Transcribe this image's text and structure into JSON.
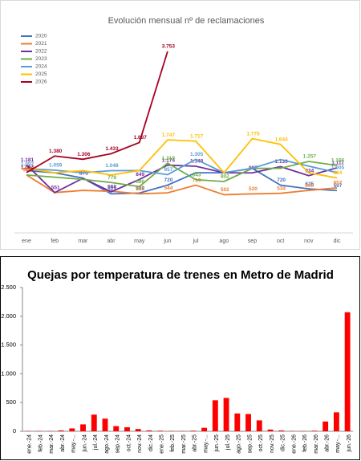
{
  "chart_data": [
    {
      "type": "line",
      "title": "Evolución mensual nº de reclamaciones",
      "categories": [
        "ene",
        "feb",
        "mar",
        "abr",
        "may",
        "jun",
        "jul",
        "ago",
        "sep",
        "oct",
        "nov",
        "dic"
      ],
      "series": [
        {
          "name": "2020",
          "color": "#4472c4",
          "values": [
            1050,
            1000,
            880,
            521,
            540,
            720,
            1000,
            1000,
            1100,
            720,
            635,
            597
          ],
          "value_labels": [
            null,
            null,
            null,
            "521",
            "540",
            "720",
            null,
            null,
            null,
            "720",
            "635",
            "597"
          ]
        },
        {
          "name": "2021",
          "color": "#ed7d31",
          "values": [
            949,
            550,
            600,
            580,
            523,
            544,
            719,
            502,
            520,
            534,
            600,
            657
          ],
          "value_labels": [
            "949",
            null,
            null,
            null,
            "523",
            "544",
            "719",
            "502",
            "520",
            "534",
            "600",
            "657"
          ]
        },
        {
          "name": "2022",
          "color": "#7030a0",
          "values": [
            1181,
            551,
            875,
            568,
            849,
            1174,
            1148,
            1000,
            997,
            1139,
            934,
            1111
          ],
          "value_labels": [
            "1.181",
            "551",
            "875",
            "568",
            "849",
            "1.174",
            "1.148",
            null,
            "997",
            "1.139",
            "934",
            "1.111"
          ]
        },
        {
          "name": "2023",
          "color": "#70ad47",
          "values": [
            950,
            900,
            850,
            779,
            686,
            1219,
            843,
            802,
            1100,
            1100,
            1257,
            1166
          ],
          "value_labels": [
            null,
            null,
            null,
            "779",
            "686",
            "1.219",
            "843",
            "802",
            null,
            null,
            "1.257",
            "1.166"
          ]
        },
        {
          "name": "2024",
          "color": "#5b9bd5",
          "values": [
            1092,
            1059,
            1000,
            1048,
            1050,
            957,
            1305,
            1000,
            1100,
            1300,
            1150,
            1005
          ],
          "value_labels": [
            "1.092",
            "1.059",
            null,
            "1.048",
            null,
            "957",
            "1.305",
            null,
            null,
            null,
            null,
            "1.005"
          ]
        },
        {
          "name": "2025",
          "color": "#ffc000",
          "values": [
            1100,
            1000,
            1050,
            950,
            1050,
            1747,
            1717,
            1000,
            1775,
            1644,
            1000,
            884
          ],
          "value_labels": [
            null,
            null,
            null,
            null,
            null,
            "1.747",
            "1.717",
            null,
            "1.775",
            "1.644",
            null,
            "884"
          ]
        },
        {
          "name": "2026",
          "color": "#a50021",
          "values": [
            1004,
            1380,
            1306,
            1433,
            1687,
            3753,
            null,
            null,
            null,
            null,
            null,
            null
          ],
          "value_labels": [
            "1.004",
            "1.380",
            "1.306",
            "1.433",
            "1.687",
            "3.753",
            null,
            null,
            null,
            null,
            null,
            null
          ]
        }
      ]
    },
    {
      "type": "bar",
      "title": "Quejas por temperatura de trenes en Metro de Madrid",
      "color": "#ff0000",
      "categories": [
        "ene.-24",
        "feb.-24",
        "mar.-24",
        "abr.-24",
        "may.-...",
        "jun.-24",
        "jul.-24",
        "ago.-24",
        "sep.-24",
        "oct.-24",
        "nov.-24",
        "dic.-24",
        "ene.-25",
        "feb.-25",
        "mar.-25",
        "abr.-25",
        "may.-...",
        "jun.-25",
        "jul.-25",
        "ago.-25",
        "sep.-25",
        "oct.-25",
        "nov.-25",
        "dic.-25",
        "ene.-26",
        "feb.-26",
        "mar.-26",
        "abr.-26",
        "may.-...",
        "jun.-26"
      ],
      "values": [
        5,
        5,
        5,
        15,
        50,
        120,
        290,
        220,
        90,
        70,
        40,
        15,
        10,
        5,
        5,
        10,
        60,
        540,
        580,
        310,
        300,
        190,
        30,
        15,
        5,
        5,
        10,
        170,
        330,
        2070
      ],
      "ylim": [
        0,
        2500
      ],
      "yticks": [
        0,
        500,
        {
          "value": 1000,
          "label": "1.000"
        },
        {
          "value": 1500,
          "label": "1.500"
        },
        {
          "value": 2000,
          "label": "2.000"
        },
        {
          "value": 2500,
          "label": "2.500"
        }
      ],
      "grid": false
    }
  ]
}
